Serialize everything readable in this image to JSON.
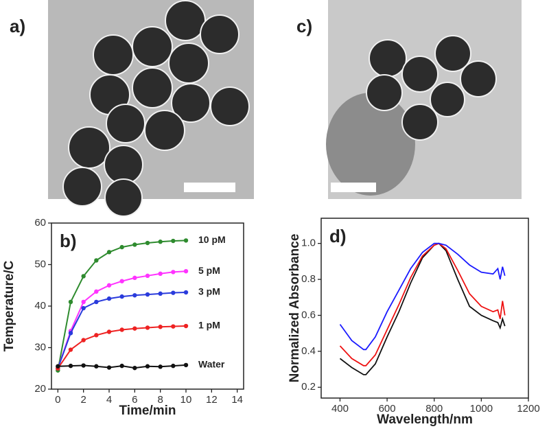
{
  "panels": [
    {
      "label": "a)"
    },
    {
      "label": "c)"
    }
  ],
  "chart_data": [
    {
      "type": "line",
      "panel_label": "b)",
      "x_label": "Time/min",
      "y_label": "Temperature/C",
      "x": [
        0,
        1,
        2,
        3,
        4,
        5,
        6,
        7,
        8,
        9,
        10
      ],
      "xlim": [
        -0.5,
        14.5
      ],
      "xticks": [
        0,
        2,
        4,
        6,
        8,
        10,
        12,
        14
      ],
      "ylim": [
        20,
        60
      ],
      "yticks": [
        20,
        30,
        40,
        50,
        60
      ],
      "markers": true,
      "end_labels": true,
      "series": [
        {
          "name": "10 pM",
          "color": "#2e8b2e",
          "values": [
            24.5,
            41,
            47.2,
            51,
            53,
            54.2,
            54.8,
            55.2,
            55.5,
            55.7,
            55.8
          ]
        },
        {
          "name": "5 pM",
          "color": "#ff33ff",
          "values": [
            25,
            34,
            41,
            43.5,
            45,
            46,
            46.8,
            47.3,
            47.8,
            48.2,
            48.4
          ]
        },
        {
          "name": "3 pM",
          "color": "#2a3bdc",
          "values": [
            25,
            33.5,
            39.5,
            41,
            41.8,
            42.3,
            42.6,
            42.8,
            43,
            43.2,
            43.3
          ]
        },
        {
          "name": "1 pM",
          "color": "#ee2222",
          "values": [
            25,
            29.5,
            31.8,
            33,
            33.8,
            34.3,
            34.6,
            34.8,
            35,
            35.1,
            35.2
          ]
        },
        {
          "name": "Water",
          "color": "#111111",
          "values": [
            25.5,
            25.6,
            25.7,
            25.5,
            25.2,
            25.6,
            25.1,
            25.5,
            25.4,
            25.6,
            25.8
          ]
        }
      ]
    },
    {
      "type": "line",
      "panel_label": "d)",
      "x_label": "Wavelength/nm",
      "y_label": "Normalized Absorbance",
      "x": [
        400,
        450,
        500,
        510,
        550,
        600,
        650,
        700,
        750,
        800,
        820,
        850,
        900,
        950,
        1000,
        1050,
        1070,
        1080,
        1090,
        1100
      ],
      "xlim": [
        320,
        1200
      ],
      "xticks": [
        400,
        600,
        800,
        1000,
        1200
      ],
      "ylim": [
        0.14,
        1.14
      ],
      "yticks": [
        {
          "value": 0.2,
          "label": "0.2"
        },
        {
          "value": 0.4,
          "label": "0.4"
        },
        {
          "value": 0.6,
          "label": "0.6"
        },
        {
          "value": 0.8,
          "label": "0.8"
        },
        {
          "value": 1,
          "label": "1.0"
        }
      ],
      "markers": false,
      "end_labels": false,
      "series": [
        {
          "color": "#111111",
          "values": [
            0.36,
            0.31,
            0.27,
            0.27,
            0.33,
            0.48,
            0.62,
            0.78,
            0.92,
            0.99,
            1.0,
            0.96,
            0.8,
            0.65,
            0.6,
            0.57,
            0.56,
            0.53,
            0.58,
            0.54
          ]
        },
        {
          "color": "#ee1111",
          "values": [
            0.43,
            0.36,
            0.32,
            0.32,
            0.38,
            0.52,
            0.66,
            0.81,
            0.93,
            0.99,
            1.0,
            0.97,
            0.85,
            0.72,
            0.65,
            0.62,
            0.63,
            0.58,
            0.68,
            0.6
          ]
        },
        {
          "color": "#1a1aff",
          "values": [
            0.55,
            0.46,
            0.41,
            0.41,
            0.48,
            0.62,
            0.74,
            0.86,
            0.95,
            1.0,
            1.0,
            0.99,
            0.94,
            0.88,
            0.84,
            0.83,
            0.86,
            0.8,
            0.87,
            0.82
          ]
        }
      ]
    }
  ]
}
